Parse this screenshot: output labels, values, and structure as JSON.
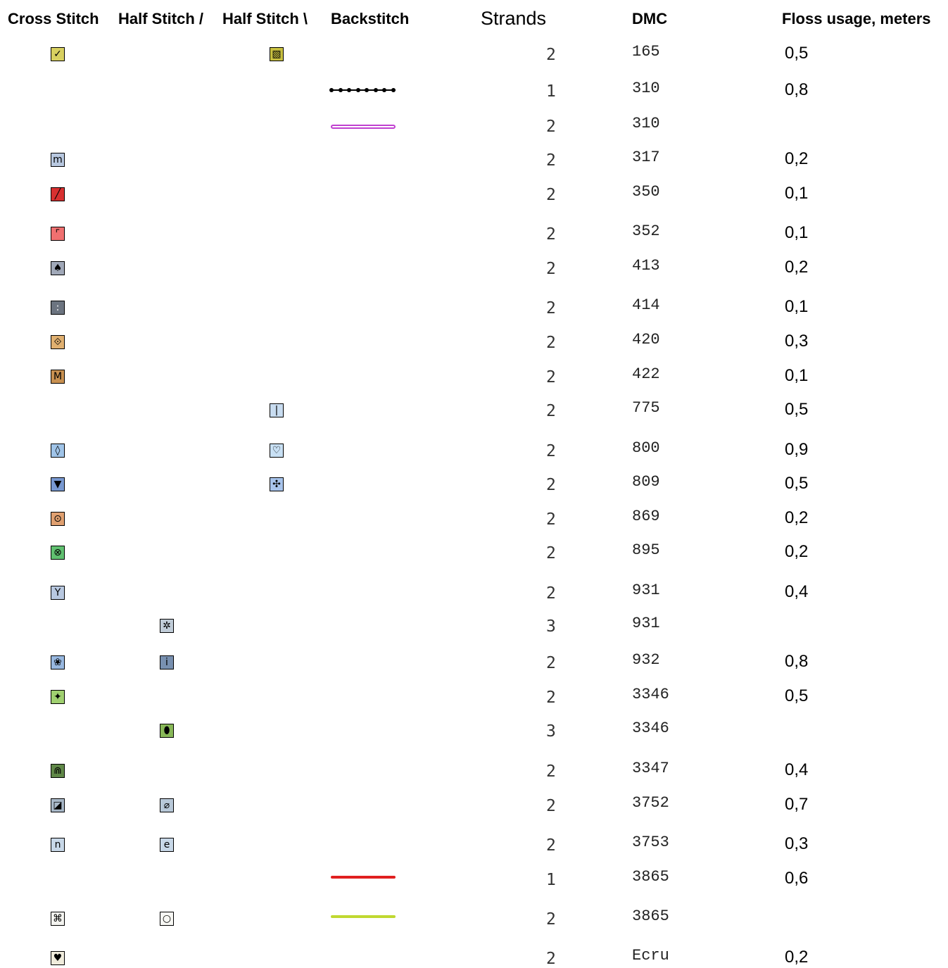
{
  "headers": {
    "cross": "Cross Stitch",
    "half_fwd": "Half Stitch /",
    "half_back": "Half Stitch \\",
    "backstitch": "Backstitch",
    "strands": "Strands",
    "dmc": "DMC",
    "usage": "Floss usage, meters"
  },
  "rows": [
    {
      "cross": {
        "glyph": "✓",
        "color": "#d8d060",
        "fg": "#000"
      },
      "half_fwd": null,
      "half_back": {
        "glyph": "▧",
        "color": "#c8c040",
        "fg": "#000"
      },
      "backstitch": null,
      "strands": "2",
      "dmc": "165",
      "usage": "0,5"
    },
    {
      "cross": null,
      "half_fwd": null,
      "half_back": null,
      "backstitch": {
        "style": "dotted",
        "color": "#000000"
      },
      "strands": "1",
      "dmc": "310",
      "usage": "0,8"
    },
    {
      "cross": null,
      "half_fwd": null,
      "half_back": null,
      "backstitch": {
        "style": "double",
        "color": "#c040d0"
      },
      "strands": "2",
      "dmc": "310",
      "usage": ""
    },
    {
      "cross": {
        "glyph": "m",
        "color": "#b8c8e0",
        "fg": "#000"
      },
      "half_fwd": null,
      "half_back": null,
      "backstitch": null,
      "strands": "2",
      "dmc": "317",
      "usage": "0,2"
    },
    {
      "cross": {
        "glyph": "╱",
        "color": "#d83030",
        "fg": "#000"
      },
      "half_fwd": null,
      "half_back": null,
      "backstitch": null,
      "strands": "2",
      "dmc": "350",
      "usage": "0,1"
    },
    {
      "cross": {
        "glyph": "⌜",
        "color": "#f07070",
        "fg": "#000"
      },
      "half_fwd": null,
      "half_back": null,
      "backstitch": null,
      "strands": "2",
      "dmc": "352",
      "usage": "0,1"
    },
    {
      "cross": {
        "glyph": "♠",
        "color": "#a0a8b8",
        "fg": "#000"
      },
      "half_fwd": null,
      "half_back": null,
      "backstitch": null,
      "strands": "2",
      "dmc": "413",
      "usage": "0,2"
    },
    {
      "cross": {
        "glyph": ":",
        "color": "#6c7480",
        "fg": "#fff"
      },
      "half_fwd": null,
      "half_back": null,
      "backstitch": null,
      "strands": "2",
      "dmc": "414",
      "usage": "0,1"
    },
    {
      "cross": {
        "glyph": "⟐",
        "color": "#e0b070",
        "fg": "#000"
      },
      "half_fwd": null,
      "half_back": null,
      "backstitch": null,
      "strands": "2",
      "dmc": "420",
      "usage": "0,3"
    },
    {
      "cross": {
        "glyph": "M",
        "color": "#c89050",
        "fg": "#000"
      },
      "half_fwd": null,
      "half_back": null,
      "backstitch": null,
      "strands": "2",
      "dmc": "422",
      "usage": "0,1"
    },
    {
      "cross": null,
      "half_fwd": null,
      "half_back": {
        "glyph": "|",
        "color": "#c8dcf0",
        "fg": "#000"
      },
      "backstitch": null,
      "strands": "2",
      "dmc": "775",
      "usage": "0,5"
    },
    {
      "cross": {
        "glyph": "◊",
        "color": "#a0c4e8",
        "fg": "#000"
      },
      "half_fwd": null,
      "half_back": {
        "glyph": "♡",
        "color": "#c8e0f4",
        "fg": "#000"
      },
      "backstitch": null,
      "strands": "2",
      "dmc": "800",
      "usage": "0,9"
    },
    {
      "cross": {
        "glyph": "▼",
        "color": "#7898d0",
        "fg": "#000"
      },
      "half_fwd": null,
      "half_back": {
        "glyph": "✣",
        "color": "#a8c4ec",
        "fg": "#000"
      },
      "backstitch": null,
      "strands": "2",
      "dmc": "809",
      "usage": "0,5"
    },
    {
      "cross": {
        "glyph": "⊙",
        "color": "#e0a070",
        "fg": "#000"
      },
      "half_fwd": null,
      "half_back": null,
      "backstitch": null,
      "strands": "2",
      "dmc": "869",
      "usage": "0,2"
    },
    {
      "cross": {
        "glyph": "⊗",
        "color": "#60c070",
        "fg": "#000"
      },
      "half_fwd": null,
      "half_back": null,
      "backstitch": null,
      "strands": "2",
      "dmc": "895",
      "usage": "0,2"
    },
    {
      "cross": {
        "glyph": "Y",
        "color": "#b8c8e0",
        "fg": "#000"
      },
      "half_fwd": null,
      "half_back": null,
      "backstitch": null,
      "strands": "2",
      "dmc": "931",
      "usage": "0,4"
    },
    {
      "cross": null,
      "half_fwd": {
        "glyph": "✲",
        "color": "#c0ccd8",
        "fg": "#000"
      },
      "half_back": null,
      "backstitch": null,
      "strands": "3",
      "dmc": "931",
      "usage": ""
    },
    {
      "cross": {
        "glyph": "❀",
        "color": "#98b8e0",
        "fg": "#000"
      },
      "half_fwd": {
        "glyph": "i",
        "color": "#7890b0",
        "fg": "#000"
      },
      "half_back": null,
      "backstitch": null,
      "strands": "2",
      "dmc": "932",
      "usage": "0,8"
    },
    {
      "cross": {
        "glyph": "✦",
        "color": "#a0d070",
        "fg": "#000"
      },
      "half_fwd": null,
      "half_back": null,
      "backstitch": null,
      "strands": "2",
      "dmc": "3346",
      "usage": "0,5"
    },
    {
      "cross": null,
      "half_fwd": {
        "glyph": "⬮",
        "color": "#88b858",
        "fg": "#000"
      },
      "half_back": null,
      "backstitch": null,
      "strands": "3",
      "dmc": "3346",
      "usage": ""
    },
    {
      "cross": {
        "glyph": "⋒",
        "color": "#608848",
        "fg": "#000"
      },
      "half_fwd": null,
      "half_back": null,
      "backstitch": null,
      "strands": "2",
      "dmc": "3347",
      "usage": "0,4"
    },
    {
      "cross": {
        "glyph": "◪",
        "color": "#a8b8c8",
        "fg": "#000"
      },
      "half_fwd": {
        "glyph": "⌀",
        "color": "#b8c8d8",
        "fg": "#000"
      },
      "half_back": null,
      "backstitch": null,
      "strands": "2",
      "dmc": "3752",
      "usage": "0,7"
    },
    {
      "cross": {
        "glyph": "n",
        "color": "#c8d8e8",
        "fg": "#000"
      },
      "half_fwd": {
        "glyph": "e",
        "color": "#c8d8e8",
        "fg": "#000"
      },
      "half_back": null,
      "backstitch": null,
      "strands": "2",
      "dmc": "3753",
      "usage": "0,3"
    },
    {
      "cross": null,
      "half_fwd": null,
      "half_back": null,
      "backstitch": {
        "style": "solid",
        "color": "#e02020"
      },
      "strands": "1",
      "dmc": "3865",
      "usage": "0,6"
    },
    {
      "cross": {
        "glyph": "⌘",
        "color": "#f4f4f0",
        "fg": "#000"
      },
      "half_fwd": {
        "glyph": "○",
        "color": "#f8f8f4",
        "fg": "#000"
      },
      "half_back": null,
      "backstitch": {
        "style": "solid",
        "color": "#c0d830"
      },
      "strands": "2",
      "dmc": "3865",
      "usage": ""
    },
    {
      "cross": {
        "glyph": "♥",
        "color": "#f0ecdc",
        "fg": "#000"
      },
      "half_fwd": null,
      "half_back": null,
      "backstitch": null,
      "strands": "2",
      "dmc": "Ecru",
      "usage": "0,2"
    }
  ]
}
